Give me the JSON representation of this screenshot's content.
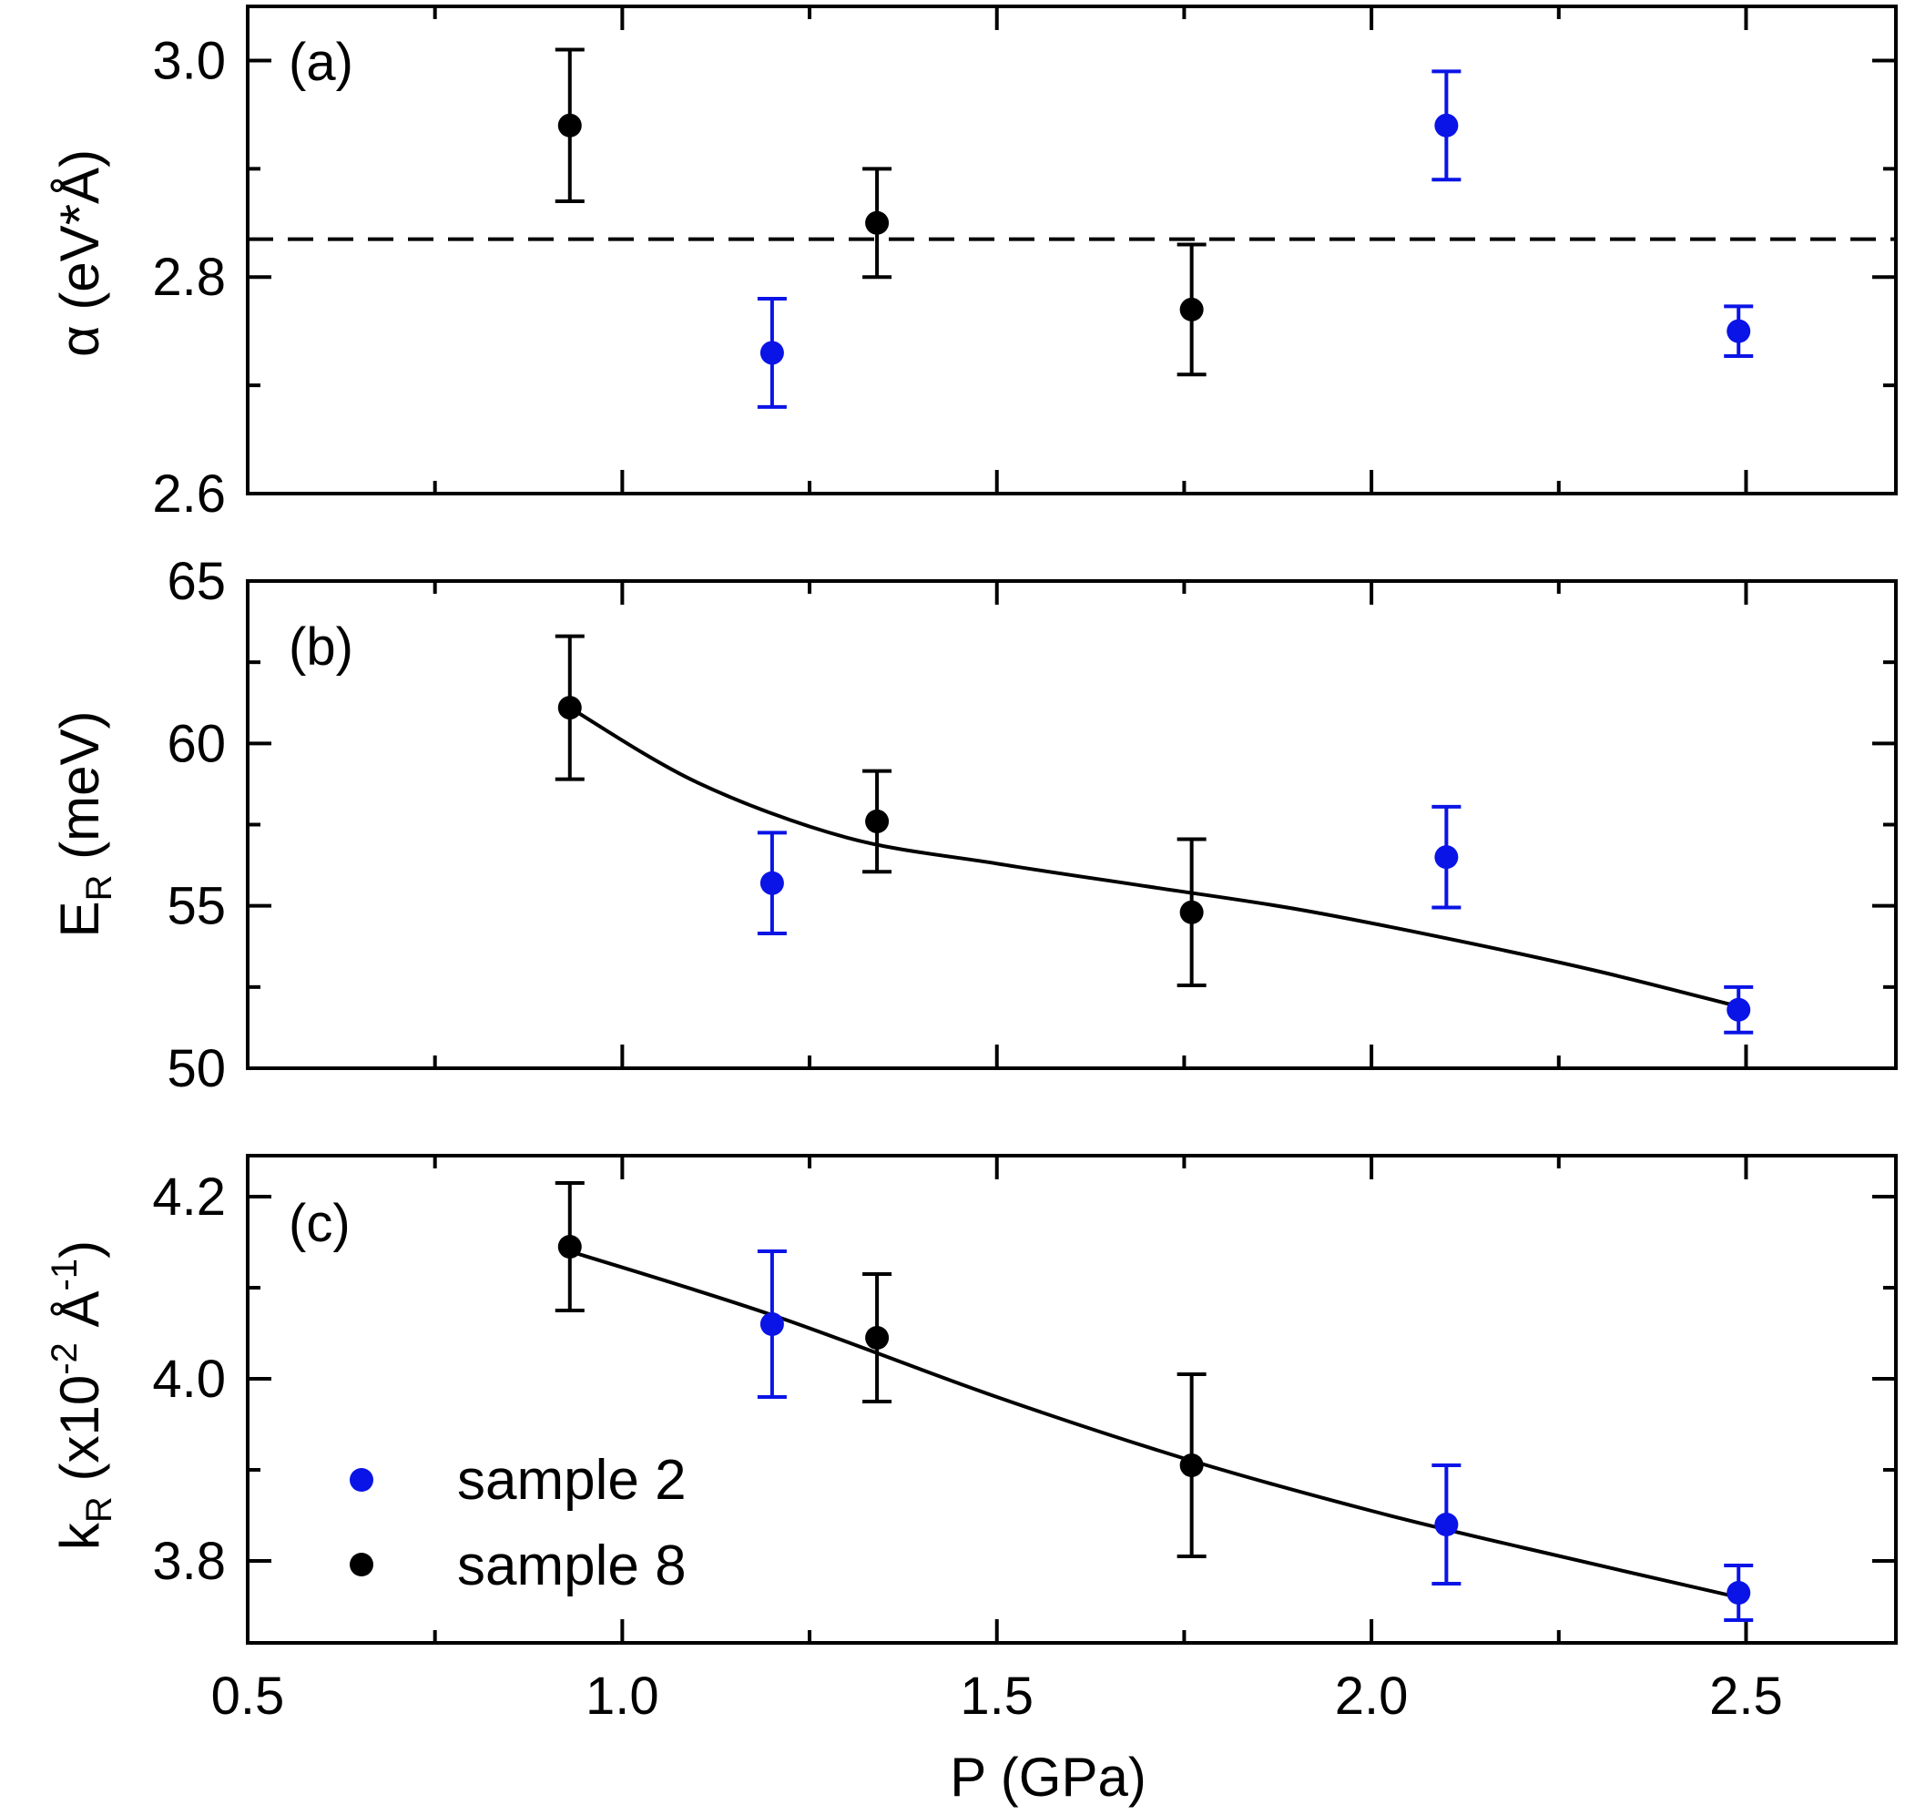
{
  "chart_data": {
    "type": "scatter",
    "x_label": "P (GPa)",
    "x_range": [
      0.5,
      2.7
    ],
    "x_ticks": [
      0.5,
      1.0,
      1.5,
      2.0,
      2.5
    ],
    "x_tick_labels": [
      "0.5",
      "1.0",
      "1.5",
      "2.0",
      "2.5"
    ],
    "legend": {
      "position": "bottom-left",
      "entries": [
        {
          "label": "sample 2",
          "color": "#0a14e6"
        },
        {
          "label": "sample 8",
          "color": "#000000"
        }
      ]
    },
    "panels": [
      {
        "id": "a",
        "tag": "(a)",
        "ylabel": {
          "main": "α (eV*Å)",
          "sub": ""
        },
        "ylim": [
          2.6,
          3.05
        ],
        "yticks": [
          2.6,
          2.8,
          3.0
        ],
        "ytick_labels": [
          "2.6",
          "2.8",
          "3.0"
        ],
        "yminor": [
          2.7,
          2.9
        ],
        "reference_line": {
          "y": 2.835,
          "style": "dashed"
        },
        "fit": null,
        "series": [
          {
            "name": "sample 2",
            "color": "#0a14e6",
            "points": [
              {
                "x": 1.2,
                "y": 2.73,
                "err": 0.05
              },
              {
                "x": 2.1,
                "y": 2.94,
                "err": 0.05
              },
              {
                "x": 2.49,
                "y": 2.75,
                "err": 0.023
              }
            ]
          },
          {
            "name": "sample 8",
            "color": "#000000",
            "points": [
              {
                "x": 0.93,
                "y": 2.94,
                "err": 0.07
              },
              {
                "x": 1.34,
                "y": 2.85,
                "err": 0.05
              },
              {
                "x": 1.76,
                "y": 2.77,
                "err": 0.06
              }
            ]
          }
        ]
      },
      {
        "id": "b",
        "tag": "(b)",
        "ylabel": {
          "main": "E",
          "sub": "R",
          "rest": " (meV)"
        },
        "ylim": [
          50,
          65
        ],
        "yticks": [
          50,
          55,
          60,
          65
        ],
        "ytick_labels": [
          "50",
          "55",
          "60",
          "65"
        ],
        "yminor": [
          52.5,
          57.5,
          62.5
        ],
        "reference_line": null,
        "fit": {
          "x": [
            0.93,
            1.1,
            1.3,
            1.5,
            1.7,
            1.9,
            2.1,
            2.3,
            2.49
          ],
          "y": [
            61.1,
            58.8,
            57.1,
            56.3,
            55.6,
            54.9,
            54.0,
            53.0,
            51.9
          ]
        },
        "series": [
          {
            "name": "sample 2",
            "color": "#0a14e6",
            "points": [
              {
                "x": 1.2,
                "y": 55.7,
                "err": 1.55
              },
              {
                "x": 2.1,
                "y": 56.5,
                "err": 1.55
              },
              {
                "x": 2.49,
                "y": 51.8,
                "err": 0.7
              }
            ]
          },
          {
            "name": "sample 8",
            "color": "#000000",
            "points": [
              {
                "x": 0.93,
                "y": 61.1,
                "err": 2.2
              },
              {
                "x": 1.34,
                "y": 57.6,
                "err": 1.55
              },
              {
                "x": 1.76,
                "y": 54.8,
                "err": 2.25
              }
            ]
          }
        ]
      },
      {
        "id": "c",
        "tag": "(c)",
        "ylabel": {
          "main": "k",
          "sub": "R",
          "rest": " (x10",
          "sup1": "-2",
          "rest2": " Å",
          "sup2": "-1",
          "rest3": ")"
        },
        "ylim": [
          3.71,
          4.245
        ],
        "yticks": [
          3.8,
          4.0,
          4.2
        ],
        "ytick_labels": [
          "3.8",
          "4.0",
          "4.2"
        ],
        "yminor": [
          3.9,
          4.1
        ],
        "reference_line": null,
        "fit": {
          "x": [
            0.93,
            1.2,
            1.5,
            1.76,
            2.0,
            2.2,
            2.49
          ],
          "y": [
            4.14,
            4.07,
            3.98,
            3.91,
            3.855,
            3.815,
            3.76
          ]
        },
        "series": [
          {
            "name": "sample 2",
            "color": "#0a14e6",
            "points": [
              {
                "x": 1.2,
                "y": 4.06,
                "err": 0.08
              },
              {
                "x": 2.1,
                "y": 3.84,
                "err": 0.065
              },
              {
                "x": 2.49,
                "y": 3.765,
                "err": 0.03
              }
            ]
          },
          {
            "name": "sample 8",
            "color": "#000000",
            "points": [
              {
                "x": 0.93,
                "y": 4.145,
                "err": 0.07
              },
              {
                "x": 1.34,
                "y": 4.045,
                "err": 0.07
              },
              {
                "x": 1.76,
                "y": 3.905,
                "err": 0.1
              }
            ]
          }
        ]
      }
    ]
  }
}
